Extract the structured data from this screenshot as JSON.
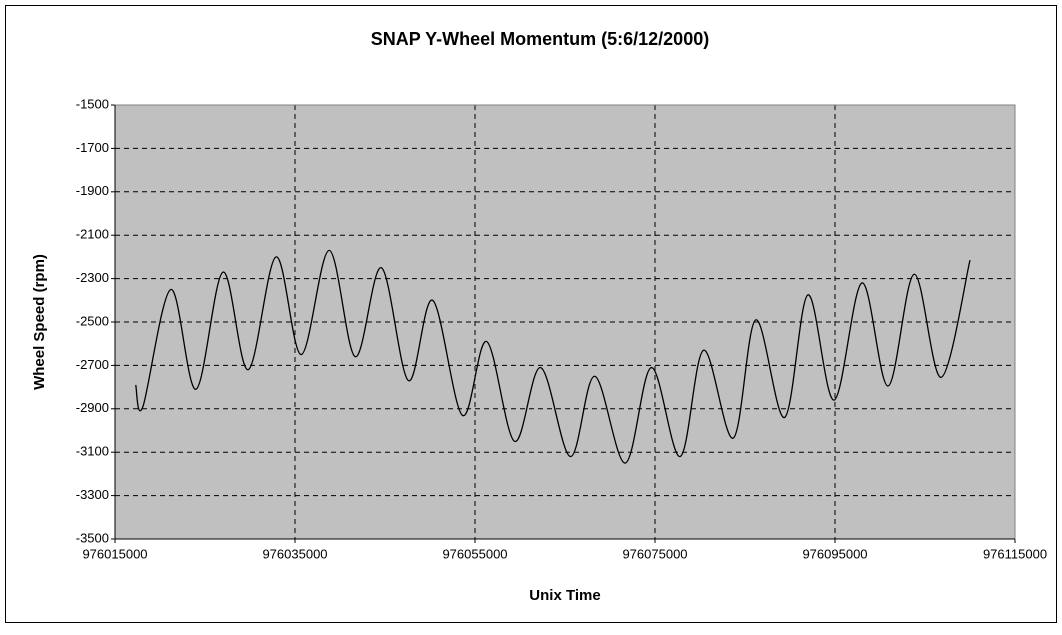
{
  "chart_data": {
    "type": "line",
    "title": "SNAP Y-Wheel Momentum (5:6/12/2000)",
    "x_label": "Unix Time",
    "y_label": "Wheel Speed (rpm)",
    "x": [
      976017300,
      976018100,
      976021200,
      976024000,
      976027000,
      976029800,
      976032900,
      976035700,
      976038800,
      976041700,
      976044600,
      976047600,
      976050300,
      976053600,
      976056300,
      976059400,
      976062300,
      976065600,
      976068300,
      976071700,
      976074600,
      976077800,
      976080400,
      976083700,
      976086200,
      976089400,
      976092000,
      976094900,
      976098000,
      976100900,
      976103800,
      976106800,
      976110000
    ],
    "series": [
      {
        "name": "Wheel Speed",
        "color": "#000000",
        "values": [
          -2790,
          -2890,
          -2350,
          -2810,
          -2270,
          -2720,
          -2200,
          -2650,
          -2170,
          -2660,
          -2250,
          -2770,
          -2400,
          -2930,
          -2590,
          -3050,
          -2710,
          -3120,
          -2750,
          -3150,
          -2710,
          -3120,
          -2630,
          -3035,
          -2490,
          -2940,
          -2375,
          -2860,
          -2320,
          -2795,
          -2280,
          -2755,
          -2215
        ]
      }
    ],
    "xlim": [
      976015000,
      976115000
    ],
    "xticks": [
      976015000,
      976035000,
      976055000,
      976075000,
      976095000,
      976115000
    ],
    "ylim": [
      -3500,
      -1500
    ],
    "yticks": [
      -3500,
      -3300,
      -3100,
      -2900,
      -2700,
      -2500,
      -2300,
      -2100,
      -1900,
      -1700,
      -1500
    ],
    "grid": true,
    "plot_background": "#c0c0c0"
  }
}
